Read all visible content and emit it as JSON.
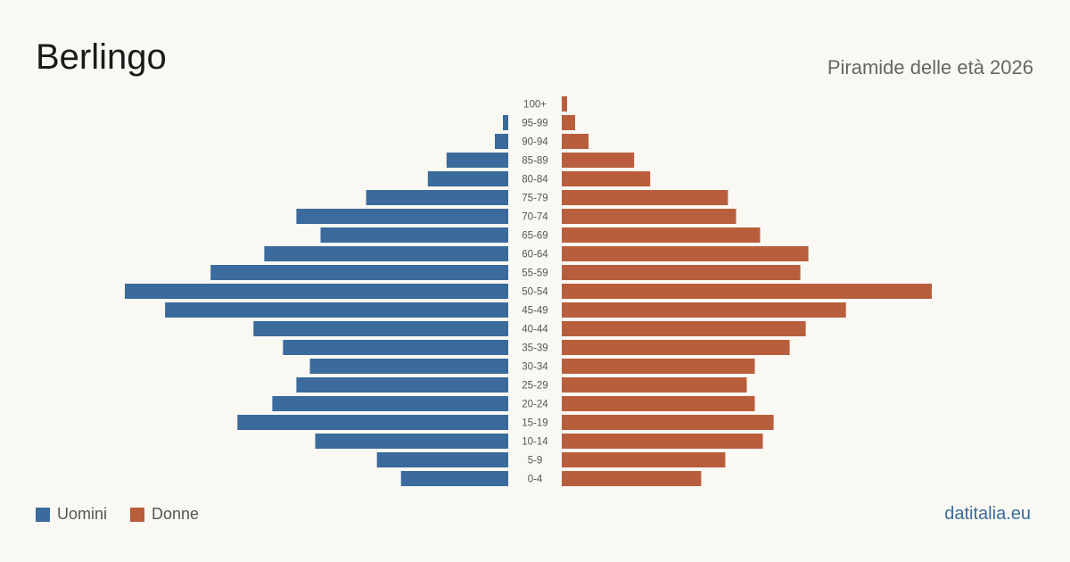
{
  "header": {
    "title": "Berlingo",
    "subtitle": "Piramide delle età 2026"
  },
  "legend": {
    "men_label": "Uomini",
    "women_label": "Donne"
  },
  "footer": {
    "brand": "datitalia.eu"
  },
  "colors": {
    "men": "#3b6a9c",
    "women": "#b95e3d"
  },
  "chart_data": {
    "type": "bar",
    "orientation": "horizontal-pyramid",
    "categories": [
      "100+",
      "95-99",
      "90-94",
      "85-89",
      "80-84",
      "75-79",
      "70-74",
      "65-69",
      "60-64",
      "55-59",
      "50-54",
      "45-49",
      "40-44",
      "35-39",
      "30-34",
      "25-29",
      "20-24",
      "15-19",
      "10-14",
      "5-9",
      "0-4"
    ],
    "series": [
      {
        "name": "Uomini",
        "values": [
          0,
          2,
          5,
          23,
          30,
          53,
          79,
          70,
          91,
          111,
          143,
          128,
          95,
          84,
          74,
          79,
          88,
          101,
          72,
          49,
          40
        ]
      },
      {
        "name": "Donne",
        "values": [
          2,
          5,
          10,
          27,
          33,
          62,
          65,
          74,
          92,
          89,
          138,
          106,
          91,
          85,
          72,
          69,
          72,
          79,
          75,
          61,
          52
        ]
      }
    ],
    "xlim": [
      0,
      143
    ],
    "grid": false,
    "legend_position": "bottom-left"
  }
}
